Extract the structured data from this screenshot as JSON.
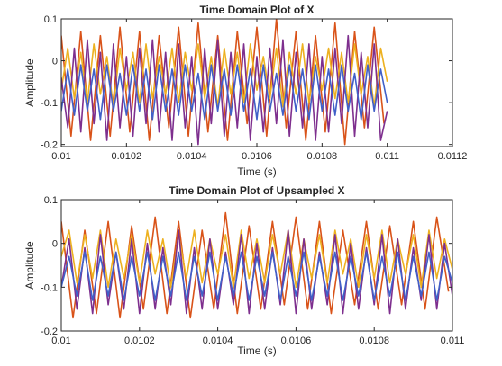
{
  "chart_data": [
    {
      "type": "line",
      "title": "Time Domain Plot of X",
      "xlabel": "Time (s)",
      "ylabel": "Amplitude",
      "xlim": [
        0.01,
        0.0112
      ],
      "ylim": [
        -0.205,
        0.1
      ],
      "xticks": [
        0.01,
        0.0102,
        0.0104,
        0.0106,
        0.0108,
        0.011,
        0.0112
      ],
      "xtick_labels": [
        "0.01",
        "0.0102",
        "0.0104",
        "0.0106",
        "0.0108",
        "0.011",
        "0.0112"
      ],
      "yticks": [
        -0.2,
        -0.1,
        0,
        0.1
      ],
      "ytick_labels": [
        "-0.2",
        "-0.1",
        "0",
        "0.1"
      ],
      "grid": false,
      "data_xrange": [
        0.01,
        0.011
      ],
      "series": [
        {
          "color": "#D95319",
          "x": [
            0.01,
            0.01003,
            0.01006,
            0.01009,
            0.01012,
            0.01015,
            0.01018,
            0.01021,
            0.01024,
            0.01027,
            0.0103,
            0.01033,
            0.01036,
            0.01039,
            0.01042,
            0.01045,
            0.01048,
            0.01051,
            0.01054,
            0.01057,
            0.0106,
            0.01063,
            0.01066,
            0.01069,
            0.01072,
            0.01075,
            0.01078,
            0.01081,
            0.01084,
            0.01087,
            0.0109,
            0.01093,
            0.01096,
            0.01099
          ],
          "y": [
            0.06,
            -0.18,
            0.07,
            -0.19,
            0.06,
            -0.18,
            0.08,
            -0.17,
            0.07,
            -0.19,
            0.06,
            -0.16,
            0.08,
            -0.18,
            0.09,
            -0.17,
            0.06,
            -0.19,
            0.07,
            -0.15,
            0.08,
            -0.18,
            0.1,
            -0.16,
            0.07,
            -0.19,
            0.06,
            -0.17,
            0.09,
            -0.2,
            0.07,
            -0.16,
            0.08,
            -0.15
          ]
        },
        {
          "color": "#EDB120",
          "x": [
            0.01,
            0.01002,
            0.01004,
            0.01006,
            0.01008,
            0.0101,
            0.01012,
            0.01014,
            0.01016,
            0.01018,
            0.0102,
            0.01022,
            0.01024,
            0.01026,
            0.01028,
            0.0103,
            0.01032,
            0.01034,
            0.01036,
            0.01038,
            0.0104,
            0.01042,
            0.01044,
            0.01046,
            0.01048,
            0.0105,
            0.01052,
            0.01054,
            0.01056,
            0.01058,
            0.0106,
            0.01062,
            0.01064,
            0.01066,
            0.01068,
            0.0107,
            0.01072,
            0.01074,
            0.01076,
            0.01078,
            0.0108,
            0.01082,
            0.01084,
            0.01086,
            0.01088,
            0.0109,
            0.01092,
            0.01094,
            0.01096,
            0.01098,
            0.011
          ],
          "y": [
            -0.07,
            0.03,
            -0.09,
            0.02,
            -0.1,
            0.04,
            -0.08,
            0.01,
            -0.11,
            0.03,
            -0.07,
            0.02,
            -0.1,
            0.04,
            -0.09,
            0.01,
            -0.08,
            0.03,
            -0.1,
            0.02,
            -0.07,
            0.04,
            -0.09,
            0.01,
            -0.11,
            0.03,
            -0.08,
            0.02,
            -0.1,
            0.04,
            -0.07,
            0.01,
            -0.09,
            0.03,
            -0.11,
            0.02,
            -0.08,
            0.04,
            -0.1,
            0.01,
            -0.07,
            0.03,
            -0.09,
            0.02,
            -0.1,
            0.04,
            -0.08,
            0.01,
            -0.11,
            0.03,
            -0.05
          ]
        },
        {
          "color": "#7E2F8E",
          "x": [
            0.01,
            0.01002,
            0.01004,
            0.01006,
            0.01008,
            0.0101,
            0.01012,
            0.01014,
            0.01016,
            0.01018,
            0.0102,
            0.01022,
            0.01024,
            0.01026,
            0.01028,
            0.0103,
            0.01032,
            0.01034,
            0.01036,
            0.01038,
            0.0104,
            0.01042,
            0.01044,
            0.01046,
            0.01048,
            0.0105,
            0.01052,
            0.01054,
            0.01056,
            0.01058,
            0.0106,
            0.01062,
            0.01064,
            0.01066,
            0.01068,
            0.0107,
            0.01072,
            0.01074,
            0.01076,
            0.01078,
            0.0108,
            0.01082,
            0.01084,
            0.01086,
            0.01088,
            0.0109,
            0.01092,
            0.01094,
            0.01096,
            0.01098,
            0.011
          ],
          "y": [
            -0.04,
            -0.16,
            0.03,
            -0.17,
            0.05,
            -0.15,
            0.02,
            -0.19,
            0.04,
            -0.16,
            0.01,
            -0.18,
            0.03,
            -0.15,
            0.05,
            -0.17,
            0.02,
            -0.19,
            0.04,
            -0.16,
            0.01,
            -0.2,
            0.03,
            -0.15,
            0.05,
            -0.18,
            0.02,
            -0.16,
            0.04,
            -0.19,
            0.01,
            -0.17,
            0.03,
            -0.15,
            0.05,
            -0.18,
            0.02,
            -0.16,
            0.04,
            -0.19,
            0.01,
            -0.17,
            0.03,
            -0.15,
            0.06,
            -0.18,
            0.02,
            -0.16,
            0.04,
            -0.19,
            -0.12
          ]
        },
        {
          "color": "#4060C8",
          "x": [
            0.01,
            0.01002,
            0.01004,
            0.01006,
            0.01008,
            0.0101,
            0.01012,
            0.01014,
            0.01016,
            0.01018,
            0.0102,
            0.01022,
            0.01024,
            0.01026,
            0.01028,
            0.0103,
            0.01032,
            0.01034,
            0.01036,
            0.01038,
            0.0104,
            0.01042,
            0.01044,
            0.01046,
            0.01048,
            0.0105,
            0.01052,
            0.01054,
            0.01056,
            0.01058,
            0.0106,
            0.01062,
            0.01064,
            0.01066,
            0.01068,
            0.0107,
            0.01072,
            0.01074,
            0.01076,
            0.01078,
            0.0108,
            0.01082,
            0.01084,
            0.01086,
            0.01088,
            0.0109,
            0.01092,
            0.01094,
            0.01096,
            0.01098,
            0.011
          ],
          "y": [
            -0.12,
            -0.02,
            -0.13,
            -0.01,
            -0.12,
            -0.02,
            -0.14,
            -0.01,
            -0.12,
            -0.03,
            -0.13,
            -0.01,
            -0.12,
            -0.02,
            -0.14,
            -0.01,
            -0.12,
            -0.02,
            -0.13,
            -0.01,
            -0.12,
            -0.03,
            -0.14,
            -0.01,
            -0.12,
            -0.02,
            -0.13,
            -0.01,
            -0.12,
            -0.02,
            -0.14,
            -0.01,
            -0.12,
            -0.03,
            -0.13,
            -0.01,
            -0.12,
            -0.02,
            -0.14,
            -0.01,
            -0.12,
            -0.02,
            -0.13,
            -0.01,
            -0.12,
            -0.03,
            -0.14,
            -0.01,
            -0.12,
            -0.02,
            -0.1
          ]
        }
      ]
    },
    {
      "type": "line",
      "title": "Time Domain Plot of Upsampled X",
      "xlabel": "Time (s)",
      "ylabel": "Amplitude",
      "xlim": [
        0.01,
        0.011
      ],
      "ylim": [
        -0.2,
        0.1
      ],
      "xticks": [
        0.01,
        0.0102,
        0.0104,
        0.0106,
        0.0108,
        0.011
      ],
      "xtick_labels": [
        "0.01",
        "0.0102",
        "0.0104",
        "0.0106",
        "0.0108",
        "0.011"
      ],
      "yticks": [
        -0.2,
        -0.1,
        0,
        0.1
      ],
      "ytick_labels": [
        "-0.2",
        "-0.1",
        "0",
        "0.1"
      ],
      "grid": false,
      "data_xrange": [
        0.01,
        0.011
      ],
      "series": [
        {
          "color": "#D95319",
          "x": [
            0.01,
            0.01003,
            0.01006,
            0.01009,
            0.01012,
            0.01015,
            0.01018,
            0.01021,
            0.01024,
            0.01027,
            0.0103,
            0.01033,
            0.01036,
            0.01039,
            0.01042,
            0.01045,
            0.01048,
            0.01051,
            0.01054,
            0.01057,
            0.0106,
            0.01063,
            0.01066,
            0.01069,
            0.01072,
            0.01075,
            0.01078,
            0.01081,
            0.01084,
            0.01087,
            0.0109,
            0.01093,
            0.01096,
            0.01099
          ],
          "y": [
            0.05,
            -0.17,
            0.03,
            -0.16,
            0.05,
            -0.17,
            0.04,
            -0.15,
            0.06,
            -0.16,
            0.05,
            -0.17,
            0.03,
            -0.15,
            0.07,
            -0.16,
            0.04,
            -0.15,
            0.05,
            -0.14,
            0.06,
            -0.15,
            0.05,
            -0.16,
            0.03,
            -0.14,
            0.05,
            -0.15,
            0.04,
            -0.14,
            0.05,
            -0.15,
            0.06,
            -0.11
          ]
        },
        {
          "color": "#EDB120",
          "x": [
            0.01,
            0.01002,
            0.01004,
            0.01006,
            0.01008,
            0.0101,
            0.01012,
            0.01014,
            0.01016,
            0.01018,
            0.0102,
            0.01022,
            0.01024,
            0.01026,
            0.01028,
            0.0103,
            0.01032,
            0.01034,
            0.01036,
            0.01038,
            0.0104,
            0.01042,
            0.01044,
            0.01046,
            0.01048,
            0.0105,
            0.01052,
            0.01054,
            0.01056,
            0.01058,
            0.0106,
            0.01062,
            0.01064,
            0.01066,
            0.01068,
            0.0107,
            0.01072,
            0.01074,
            0.01076,
            0.01078,
            0.0108,
            0.01082,
            0.01084,
            0.01086,
            0.01088,
            0.0109,
            0.01092,
            0.01094,
            0.01096,
            0.01098,
            0.011
          ],
          "y": [
            -0.03,
            0.03,
            -0.09,
            0.02,
            -0.08,
            0.03,
            -0.1,
            0.01,
            -0.08,
            0.02,
            -0.09,
            0.03,
            -0.07,
            0.01,
            -0.1,
            0.02,
            -0.08,
            0.03,
            -0.09,
            0.01,
            -0.07,
            0.02,
            -0.1,
            0.03,
            -0.08,
            0.01,
            -0.09,
            0.02,
            -0.07,
            0.03,
            -0.1,
            0.01,
            -0.08,
            0.02,
            -0.09,
            0.03,
            -0.07,
            0.01,
            -0.1,
            0.02,
            -0.08,
            0.03,
            -0.09,
            0.01,
            -0.07,
            0.02,
            -0.1,
            0.03,
            -0.08,
            0.01,
            -0.06
          ]
        },
        {
          "color": "#7E2F8E",
          "x": [
            0.01,
            0.01002,
            0.01004,
            0.01006,
            0.01008,
            0.0101,
            0.01012,
            0.01014,
            0.01016,
            0.01018,
            0.0102,
            0.01022,
            0.01024,
            0.01026,
            0.01028,
            0.0103,
            0.01032,
            0.01034,
            0.01036,
            0.01038,
            0.0104,
            0.01042,
            0.01044,
            0.01046,
            0.01048,
            0.0105,
            0.01052,
            0.01054,
            0.01056,
            0.01058,
            0.0106,
            0.01062,
            0.01064,
            0.01066,
            0.01068,
            0.0107,
            0.01072,
            0.01074,
            0.01076,
            0.01078,
            0.0108,
            0.01082,
            0.01084,
            0.01086,
            0.01088,
            0.0109,
            0.01092,
            0.01094,
            0.01096,
            0.01098,
            0.011
          ],
          "y": [
            -0.1,
            0.01,
            -0.15,
            -0.01,
            -0.16,
            0.02,
            -0.14,
            -0.02,
            -0.15,
            0.01,
            -0.16,
            0.0,
            -0.15,
            -0.01,
            -0.14,
            0.03,
            -0.16,
            -0.01,
            -0.15,
            0.01,
            -0.15,
            -0.02,
            -0.14,
            0.02,
            -0.16,
            0.0,
            -0.15,
            -0.01,
            -0.14,
            0.03,
            -0.16,
            0.01,
            -0.15,
            -0.02,
            -0.14,
            0.02,
            -0.16,
            0.0,
            -0.15,
            -0.01,
            -0.14,
            0.02,
            -0.16,
            0.01,
            -0.15,
            -0.01,
            -0.13,
            0.02,
            -0.15,
            0.0,
            -0.12
          ]
        },
        {
          "color": "#4060C8",
          "x": [
            0.01,
            0.01002,
            0.01004,
            0.01006,
            0.01008,
            0.0101,
            0.01012,
            0.01014,
            0.01016,
            0.01018,
            0.0102,
            0.01022,
            0.01024,
            0.01026,
            0.01028,
            0.0103,
            0.01032,
            0.01034,
            0.01036,
            0.01038,
            0.0104,
            0.01042,
            0.01044,
            0.01046,
            0.01048,
            0.0105,
            0.01052,
            0.01054,
            0.01056,
            0.01058,
            0.0106,
            0.01062,
            0.01064,
            0.01066,
            0.01068,
            0.0107,
            0.01072,
            0.01074,
            0.01076,
            0.01078,
            0.0108,
            0.01082,
            0.01084,
            0.01086,
            0.01088,
            0.0109,
            0.01092,
            0.01094,
            0.01096,
            0.01098,
            0.011
          ],
          "y": [
            -0.1,
            -0.03,
            -0.12,
            -0.02,
            -0.13,
            -0.03,
            -0.12,
            -0.02,
            -0.13,
            -0.03,
            -0.12,
            -0.02,
            -0.13,
            -0.03,
            -0.12,
            -0.02,
            -0.13,
            -0.03,
            -0.12,
            -0.02,
            -0.13,
            -0.03,
            -0.12,
            -0.02,
            -0.13,
            -0.03,
            -0.12,
            -0.02,
            -0.13,
            -0.03,
            -0.12,
            -0.02,
            -0.13,
            -0.03,
            -0.12,
            -0.02,
            -0.13,
            -0.03,
            -0.12,
            -0.02,
            -0.13,
            -0.03,
            -0.12,
            -0.02,
            -0.13,
            -0.03,
            -0.12,
            -0.02,
            -0.13,
            -0.03,
            -0.09
          ]
        }
      ]
    }
  ]
}
